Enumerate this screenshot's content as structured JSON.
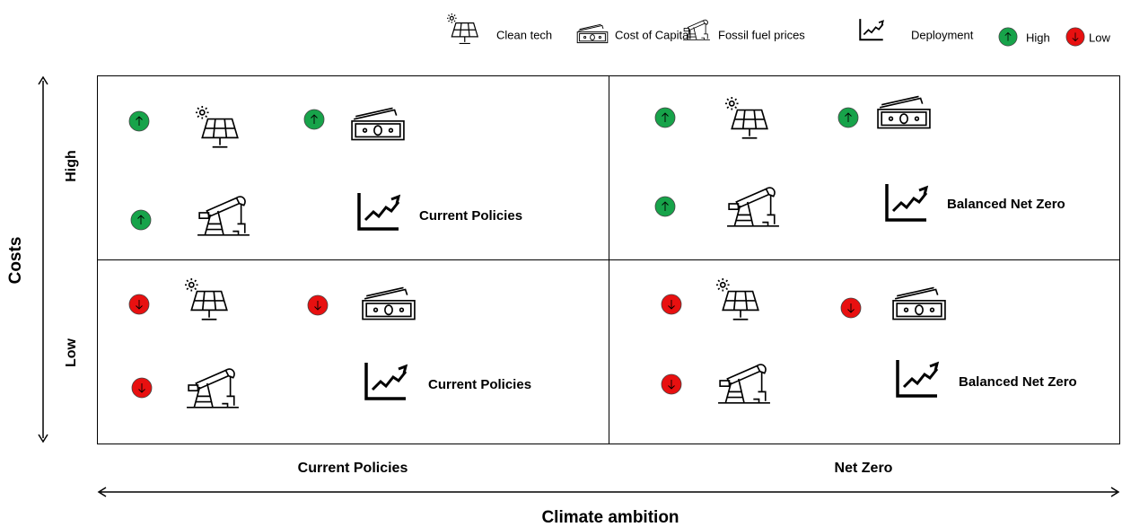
{
  "legend": {
    "clean_tech": "Clean tech",
    "cost_of_capital": "Cost of Capital",
    "fossil_fuel_prices": "Fossil fuel prices",
    "deployment": "Deployment",
    "high": "High",
    "low": "Low"
  },
  "y_axis": {
    "title": "Costs",
    "high": "High",
    "low": "Low"
  },
  "x_axis": {
    "title": "Climate ambition",
    "left": "Current Policies",
    "right": "Net Zero"
  },
  "quadrants": [
    {
      "label": "Current Policies"
    },
    {
      "label": "Balanced Net Zero"
    },
    {
      "label": "Current Policies"
    },
    {
      "label": "Balanced Net Zero"
    }
  ]
}
